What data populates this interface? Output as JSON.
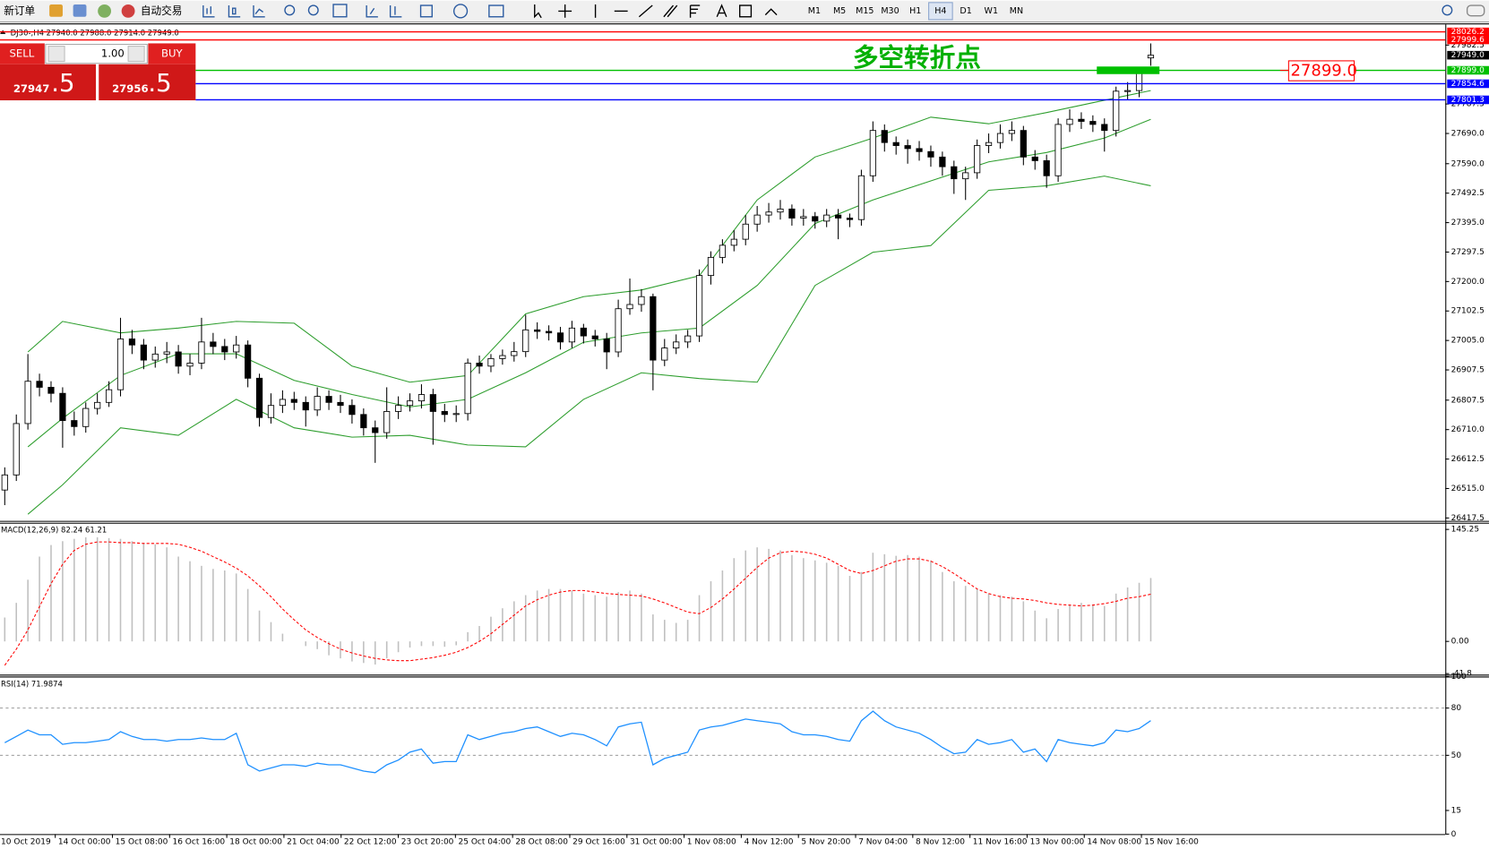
{
  "toolbar": {
    "new_order": "新订单",
    "auto_trading": "自动交易",
    "timeframes": [
      "M1",
      "M5",
      "M15",
      "M30",
      "H1",
      "H4",
      "D1",
      "W1",
      "MN"
    ],
    "active_timeframe": "H4"
  },
  "trade_panel": {
    "sell": "SELL",
    "buy": "BUY",
    "lots": "1.00",
    "sell_price": "27947",
    "sell_pips": ".5",
    "buy_price": "27956",
    "buy_pips": ".5"
  },
  "chart_data": [
    {
      "type": "candlestick",
      "title": "DJ30-,H4  27940.0 27988.0 27914.0 27949.0",
      "annotation": "多空转折点",
      "up_color": "#ffffff",
      "down_color": "#000000",
      "open": [
        26510,
        26560,
        26730,
        26870,
        26850,
        26830,
        26740,
        26720,
        26780,
        26800,
        26842,
        27010,
        26990,
        26940,
        26960,
        26967,
        26920,
        26930,
        27000,
        26985,
        26967,
        26990,
        26880,
        26750,
        26790,
        26810,
        26800,
        26775,
        26820,
        26800,
        26790,
        26760,
        26716,
        26700,
        26770,
        26790,
        26805,
        26826,
        26770,
        26760,
        26763,
        26930,
        26920,
        26945,
        26955,
        26968,
        27040,
        27035,
        27030,
        27000,
        27046,
        27020,
        27010,
        26967,
        27110,
        27124,
        27150,
        26940,
        26980,
        27000,
        27020,
        27220,
        27280,
        27320,
        27340,
        27390,
        27420,
        27430,
        27440,
        27410,
        27415,
        27400,
        27420,
        27410,
        27405,
        27550,
        27700,
        27660,
        27650,
        27640,
        27630,
        27612,
        27580,
        27540,
        27560,
        27650,
        27660,
        27690,
        27700,
        27612,
        27600,
        27550,
        27720,
        27737,
        27730,
        27720,
        27700,
        27830,
        27832,
        27940
      ],
      "high": [
        26585,
        26760,
        26960,
        26895,
        26870,
        26850,
        26770,
        26800,
        26830,
        26870,
        27080,
        27040,
        27010,
        26985,
        27000,
        26990,
        26960,
        27080,
        27030,
        27010,
        27020,
        27005,
        26895,
        26830,
        26840,
        26835,
        26820,
        26850,
        26840,
        26825,
        26810,
        26780,
        26740,
        26850,
        26820,
        26830,
        26860,
        26845,
        26795,
        26790,
        26945,
        26955,
        26960,
        26975,
        27000,
        27090,
        27065,
        27055,
        27050,
        27070,
        27060,
        27040,
        27030,
        27140,
        27210,
        27175,
        27160,
        27010,
        27025,
        27040,
        27240,
        27300,
        27340,
        27370,
        27420,
        27450,
        27460,
        27470,
        27455,
        27440,
        27430,
        27440,
        27440,
        27425,
        27570,
        27730,
        27720,
        27680,
        27670,
        27665,
        27650,
        27630,
        27600,
        27580,
        27670,
        27690,
        27720,
        27730,
        27715,
        27635,
        27620,
        27740,
        27770,
        27760,
        27750,
        27740,
        27845,
        27860,
        27910,
        27988
      ],
      "low": [
        26460,
        26540,
        26710,
        26820,
        26800,
        26650,
        26690,
        26700,
        26760,
        26785,
        26820,
        26960,
        26910,
        26915,
        26930,
        26895,
        26890,
        26910,
        26960,
        26940,
        26945,
        26850,
        26720,
        26730,
        26765,
        26775,
        26720,
        26755,
        26775,
        26765,
        26730,
        26690,
        26600,
        26680,
        26745,
        26770,
        26780,
        26660,
        26735,
        26735,
        26740,
        26895,
        26900,
        26925,
        26935,
        26950,
        27010,
        27005,
        26975,
        26980,
        26995,
        26985,
        26910,
        26950,
        27090,
        27100,
        26840,
        26920,
        26960,
        26980,
        27000,
        27190,
        27260,
        27300,
        27320,
        27365,
        27395,
        27405,
        27385,
        27385,
        27375,
        27380,
        27340,
        27380,
        27385,
        27530,
        27630,
        27620,
        27590,
        27600,
        27580,
        27550,
        27490,
        27470,
        27540,
        27625,
        27640,
        27665,
        27585,
        27570,
        27510,
        27530,
        27695,
        27705,
        27695,
        27630,
        27680,
        27800,
        27810,
        27914
      ],
      "close": [
        26560,
        26730,
        26870,
        26850,
        26830,
        26740,
        26720,
        26780,
        26800,
        26842,
        27010,
        26990,
        26940,
        26960,
        26967,
        26920,
        26930,
        27000,
        26985,
        26967,
        26990,
        26880,
        26750,
        26790,
        26810,
        26800,
        26775,
        26820,
        26800,
        26790,
        26760,
        26716,
        26700,
        26770,
        26790,
        26805,
        26826,
        26770,
        26760,
        26763,
        26930,
        26920,
        26945,
        26955,
        26968,
        27040,
        27035,
        27030,
        27000,
        27046,
        27020,
        27010,
        26967,
        27110,
        27124,
        27150,
        26940,
        26980,
        27000,
        27020,
        27220,
        27280,
        27320,
        27340,
        27390,
        27420,
        27430,
        27440,
        27410,
        27415,
        27400,
        27420,
        27410,
        27405,
        27550,
        27700,
        27660,
        27650,
        27640,
        27630,
        27612,
        27580,
        27540,
        27560,
        27650,
        27660,
        27690,
        27700,
        27612,
        27600,
        27550,
        27720,
        27737,
        27730,
        27720,
        27700,
        27830,
        27832,
        27890,
        27949
      ],
      "bollinger": {
        "color": "#2e9e2e",
        "x": [
          2,
          5,
          10,
          15,
          20,
          25,
          30,
          35,
          40,
          45,
          50,
          55,
          60,
          65,
          70,
          75,
          80,
          85,
          90,
          95,
          99
        ],
        "upper": [
          26967,
          27068,
          27030,
          27046,
          27068,
          27062,
          26920,
          26867,
          26889,
          27093,
          27150,
          27172,
          27219,
          27470,
          27612,
          27675,
          27744,
          27722,
          27759,
          27800,
          27832
        ],
        "middle": [
          26653,
          26747,
          26889,
          26961,
          26961,
          26873,
          26826,
          26785,
          26810,
          26898,
          26999,
          27030,
          27046,
          27187,
          27392,
          27470,
          27533,
          27596,
          27627,
          27675,
          27737
        ],
        "lower": [
          26430,
          26527,
          26716,
          26691,
          26810,
          26716,
          26685,
          26691,
          26659,
          26653,
          26810,
          26898,
          26879,
          26867,
          27187,
          27297,
          27319,
          27502,
          27517,
          27549,
          27517
        ]
      },
      "hlines": [
        {
          "value": 28026.2,
          "color": "#ff0000"
        },
        {
          "value": 27999.6,
          "color": "#ff0000"
        },
        {
          "value": {
            "value": 27949,
            "label": "27949.0"
          },
          "color": "#000000",
          "show_line": false
        },
        {
          "value": {
            "value": 27899,
            "label": "27899.0"
          },
          "color": "#00c000",
          "callout": true
        },
        {
          "value": 27854.6,
          "color": "#0000ff"
        },
        {
          "value": 27801.3,
          "color": "#0000ff"
        }
      ],
      "ylim": [
        26408,
        28051
      ],
      "yticks": [
        26417.5,
        {
          "value": 26515,
          "label": "26515.0"
        },
        26612.5,
        {
          "value": 26710,
          "label": "26710.0"
        },
        26807.5,
        26907.5,
        {
          "value": 27005,
          "label": "27005.0"
        },
        27102.5,
        {
          "value": 27200,
          "label": "27200.0"
        },
        27297.5,
        {
          "value": 27395,
          "label": "27395.0"
        },
        27492.5,
        {
          "value": 27590,
          "label": "27590.0"
        },
        {
          "value": 27690,
          "label": "27690.0"
        },
        27787.5,
        27982.5
      ],
      "xtick_labels": [
        "10 Oct 2019",
        "14 Oct 00:00",
        "15 Oct 08:00",
        "16 Oct 16:00",
        "18 Oct 00:00",
        "21 Oct 04:00",
        "22 Oct 12:00",
        "23 Oct 20:00",
        "25 Oct 04:00",
        "28 Oct 08:00",
        "29 Oct 16:00",
        "31 Oct 00:00",
        "1 Nov 08:00",
        "4 Nov 12:00",
        "5 Nov 20:00",
        "7 Nov 04:00",
        "8 Nov 12:00",
        "11 Nov 16:00",
        "13 Nov 00:00",
        "14 Nov 08:00",
        "15 Nov 16:00"
      ]
    },
    {
      "type": "macd",
      "title": "MACD(12,26,9) 82.24 61.21",
      "hist_color": "#c0c0c0",
      "signal_color": "#ff0000",
      "histogram": [
        31,
        50,
        80,
        110,
        125,
        130,
        133,
        135,
        135,
        134,
        133,
        130,
        128,
        126,
        122,
        110,
        104,
        98,
        94,
        92,
        88,
        68,
        40,
        25,
        10,
        0,
        -6,
        -10,
        -18,
        -22,
        -26,
        -28,
        -30,
        -22,
        -14,
        -8,
        -6,
        -6,
        -7,
        -5,
        12,
        20,
        32,
        43,
        52,
        60,
        66,
        68,
        68,
        66,
        62,
        60,
        58,
        64,
        66,
        62,
        35,
        28,
        24,
        28,
        60,
        78,
        92,
        108,
        118,
        122,
        120,
        118,
        112,
        108,
        105,
        102,
        98,
        85,
        90,
        115,
        113,
        111,
        112,
        110,
        105,
        90,
        78,
        72,
        68,
        62,
        60,
        58,
        52,
        40,
        30,
        42,
        48,
        50,
        48,
        46,
        62,
        70,
        76,
        82.24
      ],
      "signal": [
        -31,
        -10,
        15,
        45,
        75,
        100,
        118,
        126,
        129,
        129,
        128,
        128,
        127,
        127,
        127,
        126,
        122,
        117,
        110,
        103,
        95,
        85,
        72,
        58,
        42,
        28,
        15,
        5,
        -3,
        -10,
        -15,
        -19,
        -22,
        -24,
        -25,
        -25,
        -23,
        -21,
        -18,
        -14,
        -8,
        0,
        10,
        22,
        34,
        46,
        54,
        60,
        64,
        66,
        66,
        64,
        62,
        61,
        60,
        59,
        55,
        50,
        44,
        38,
        36,
        44,
        55,
        68,
        82,
        96,
        108,
        115,
        117,
        116,
        113,
        108,
        100,
        92,
        88,
        92,
        98,
        104,
        107,
        107,
        104,
        97,
        88,
        78,
        68,
        62,
        58,
        56,
        55,
        53,
        50,
        48,
        47,
        46,
        47,
        49,
        52,
        56,
        58,
        61.21
      ],
      "ylim": [
        -43.1,
        153.9
      ],
      "yticks": [
        145.25,
        {
          "value": 0,
          "label": "0.00"
        },
        -41.8
      ]
    },
    {
      "type": "rsi",
      "title": "RSI(14) 71.9874",
      "color": "#1e90ff",
      "values": [
        58,
        62,
        66,
        63,
        63,
        57,
        58,
        58,
        59,
        60,
        65,
        62,
        60,
        60,
        59,
        60,
        60,
        61,
        60,
        60,
        64,
        44,
        40,
        42,
        44,
        44,
        43,
        45,
        44,
        44,
        42,
        40,
        39,
        44,
        47,
        52,
        54,
        45,
        46,
        46,
        63,
        60,
        62,
        64,
        65,
        67,
        68,
        65,
        62,
        64,
        63,
        60,
        56,
        68,
        70,
        71,
        44,
        48,
        50,
        52,
        66,
        68,
        69,
        71,
        73,
        72,
        71,
        70,
        65,
        63,
        63,
        62,
        60,
        59,
        72,
        78,
        72,
        68,
        66,
        64,
        60,
        55,
        51,
        52,
        60,
        57,
        58,
        60,
        52,
        54,
        46,
        60,
        58,
        57,
        56,
        58,
        66,
        65,
        67,
        71.9874
      ],
      "ylim": [
        0,
        100
      ],
      "yticks": [
        100,
        80,
        50,
        15,
        0
      ],
      "levels": [
        80,
        50
      ]
    }
  ]
}
